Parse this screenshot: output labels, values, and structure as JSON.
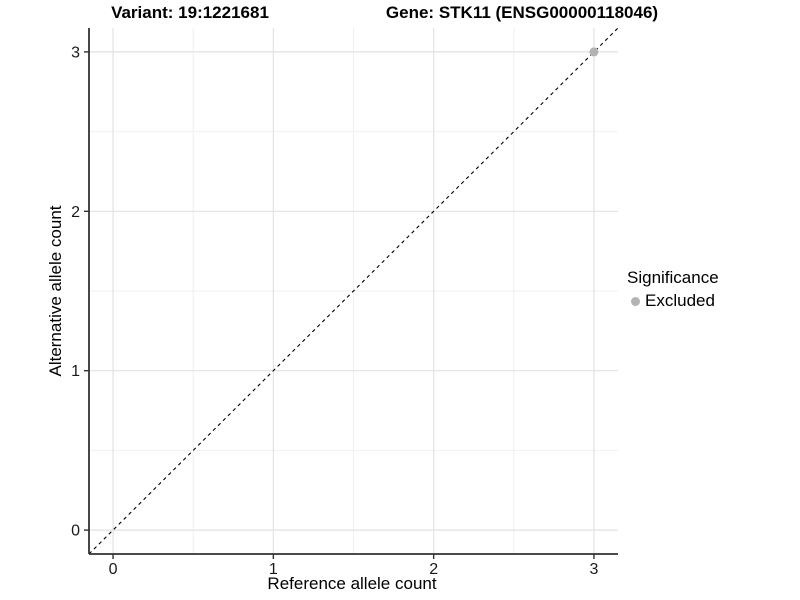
{
  "titles": {
    "variant": "Variant: 19:1221681",
    "gene": "Gene: STK11 (ENSG00000118046)"
  },
  "axes": {
    "x_label": "Reference allele count",
    "y_label": "Alternative allele count"
  },
  "legend": {
    "title": "Significance",
    "items": [
      {
        "label": "Excluded",
        "color": "#b3b3b3"
      }
    ]
  },
  "chart_data": {
    "type": "scatter",
    "title": "Variant: 19:1221681 | Gene: STK11 (ENSG00000118046)",
    "xlabel": "Reference allele count",
    "ylabel": "Alternative allele count",
    "xlim": [
      -0.15,
      3.15
    ],
    "ylim": [
      -0.15,
      3.15
    ],
    "x_ticks": [
      0,
      1,
      2,
      3
    ],
    "y_ticks": [
      0,
      1,
      2,
      3
    ],
    "x_minor_ticks": [
      0.5,
      1.5,
      2.5
    ],
    "y_minor_ticks": [
      0.5,
      1.5,
      2.5
    ],
    "grid": true,
    "legend_position": "right",
    "series": [
      {
        "name": "Excluded",
        "color": "#b3b3b3",
        "points": [
          {
            "x": 3,
            "y": 3
          }
        ]
      }
    ],
    "reference_line": {
      "type": "identity",
      "style": "dashed",
      "from": -0.15,
      "to": 3.15,
      "color": "#000000"
    },
    "style_colors": {
      "grid_major": "#e2e2e2",
      "grid_minor": "#f0f0f0",
      "axis_line": "#333333",
      "tick_label": "#1a1a1a"
    }
  }
}
